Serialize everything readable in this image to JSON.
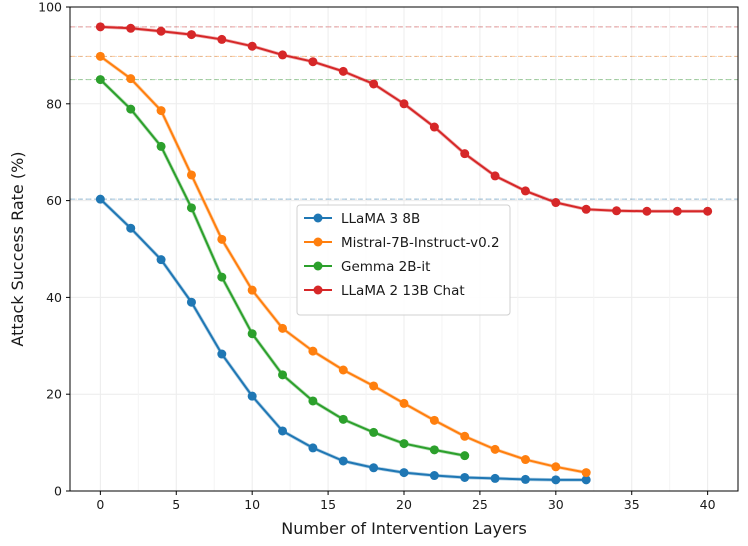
{
  "chart_data": {
    "type": "line",
    "title": "",
    "xlabel": "Number of Intervention Layers",
    "ylabel": "Attack Success Rate (%)",
    "xlim": [
      -2,
      42
    ],
    "ylim": [
      0,
      100
    ],
    "xticks": [
      0,
      5,
      10,
      15,
      20,
      25,
      30,
      35,
      40
    ],
    "yticks": [
      0,
      20,
      40,
      60,
      80,
      100
    ],
    "grid": true,
    "legend_position": "center",
    "series": [
      {
        "name": "LLaMA 3 8B",
        "color": "#1f77b4",
        "x": [
          0,
          2,
          4,
          6,
          8,
          10,
          12,
          14,
          16,
          18,
          20,
          22,
          24,
          26,
          28,
          30,
          32
        ],
        "y": [
          60.3,
          54.3,
          47.8,
          39.0,
          28.3,
          19.6,
          12.4,
          8.9,
          6.2,
          4.8,
          3.8,
          3.2,
          2.8,
          2.6,
          2.4,
          2.3,
          2.3
        ],
        "baseline": 60.3
      },
      {
        "name": "Mistral-7B-Instruct-v0.2",
        "color": "#ff7f0e",
        "x": [
          0,
          2,
          4,
          6,
          8,
          10,
          12,
          14,
          16,
          18,
          20,
          22,
          24,
          26,
          28,
          30,
          32
        ],
        "y": [
          89.8,
          85.2,
          78.6,
          65.3,
          52.0,
          41.5,
          33.6,
          28.9,
          25.0,
          21.7,
          18.1,
          14.6,
          11.3,
          8.6,
          6.5,
          5.0,
          3.8
        ],
        "baseline": 89.8
      },
      {
        "name": "Gemma 2B-it",
        "color": "#2ca02c",
        "x": [
          0,
          2,
          4,
          6,
          8,
          10,
          12,
          14,
          16,
          18
        ],
        "y": [
          85.0,
          78.9,
          71.2,
          58.5,
          44.2,
          32.5,
          24.0,
          18.6,
          14.8,
          12.1
        ],
        "x_extra": [
          20,
          22,
          24
        ],
        "y_extra": [
          9.8,
          8.5,
          7.3
        ],
        "baseline": 85.0
      },
      {
        "name": "LLaMA 2 13B Chat",
        "color": "#d62728",
        "x": [
          0,
          2,
          4,
          6,
          8,
          10,
          12,
          14,
          16,
          18,
          20,
          22,
          24,
          26,
          28,
          30,
          32,
          34,
          36,
          38,
          40
        ],
        "y": [
          95.9,
          95.6,
          95.0,
          94.3,
          93.3,
          91.9,
          90.1,
          88.7,
          86.7,
          84.1,
          80.0,
          75.2,
          69.7,
          65.1,
          62.0,
          59.6,
          58.2,
          57.9,
          57.8,
          57.8,
          57.8
        ],
        "baseline": 95.9
      }
    ]
  }
}
